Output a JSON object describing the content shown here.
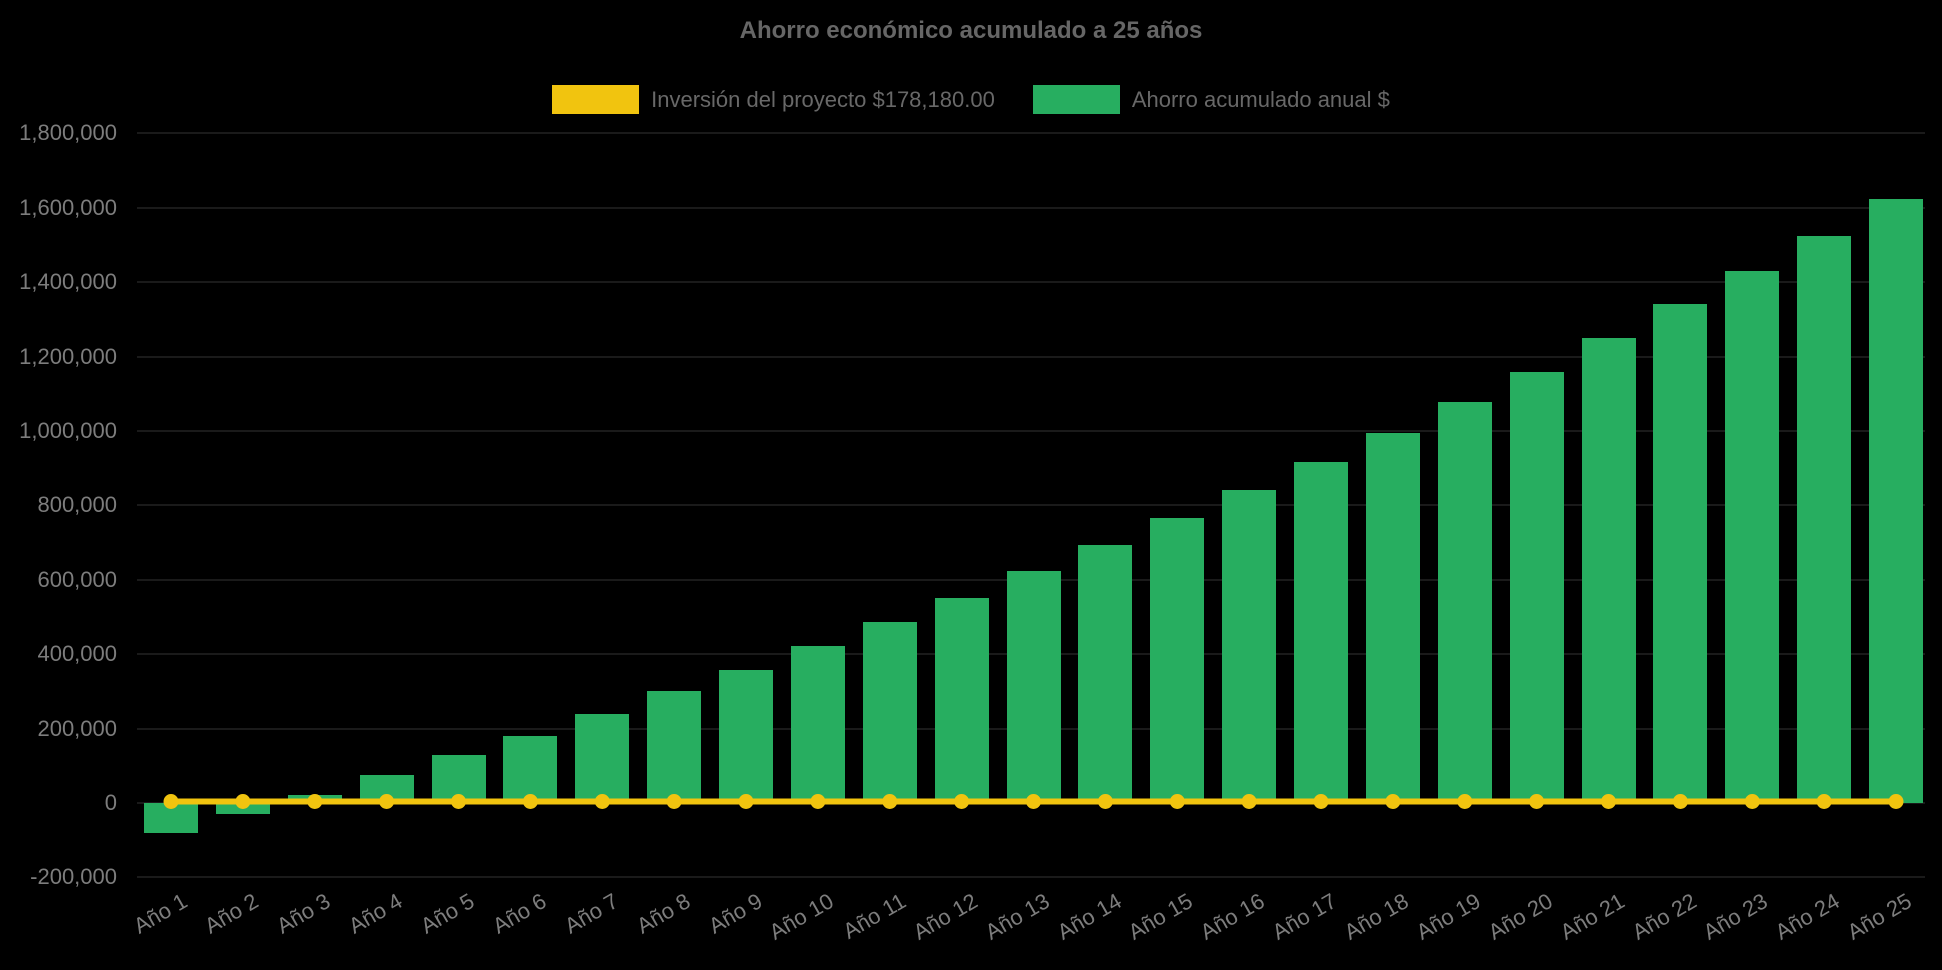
{
  "title": "Ahorro económico acumulado a 25 años",
  "legend": {
    "items": [
      {
        "label": "Inversión del proyecto $178,180.00",
        "color": "#F1C40F"
      },
      {
        "label": "Ahorro acumulado anual $",
        "color": "#27AE60"
      }
    ]
  },
  "colors": {
    "background": "#000000",
    "bar_green": "#27AE60",
    "line_yellow": "#F1C40F",
    "title_text": "#666666",
    "tick_text": "#7D7D7D",
    "gridline": "#1A1A1A"
  },
  "chart_data": {
    "type": "bar",
    "title": "Ahorro económico acumulado a 25 años",
    "categories": [
      "Año 1",
      "Año 2",
      "Año 3",
      "Año 4",
      "Año 5",
      "Año 6",
      "Año 7",
      "Año 8",
      "Año 9",
      "Año 10",
      "Año 11",
      "Año 12",
      "Año 13",
      "Año 14",
      "Año 15",
      "Año 16",
      "Año 17",
      "Año 18",
      "Año 19",
      "Año 20",
      "Año 21",
      "Año 22",
      "Año 23",
      "Año 24",
      "Año 25"
    ],
    "series": [
      {
        "name": "Inversión del proyecto $178,180.00",
        "type": "line",
        "color": "#F1C40F",
        "values": [
          0,
          0,
          0,
          0,
          0,
          0,
          0,
          0,
          0,
          0,
          0,
          0,
          0,
          0,
          0,
          0,
          0,
          0,
          0,
          0,
          0,
          0,
          0,
          0,
          0
        ]
      },
      {
        "name": "Ahorro acumulado anual $",
        "type": "bar",
        "color": "#27AE60",
        "values": [
          -80000,
          -30000,
          22000,
          75000,
          129000,
          181000,
          239000,
          301000,
          359000,
          423000,
          487000,
          552000,
          624000,
          695000,
          767000,
          841000,
          917000,
          996000,
          1078000,
          1159000,
          1249000,
          1341000,
          1431000,
          1523000,
          1624000
        ]
      }
    ],
    "xlabel": "",
    "ylabel": "",
    "ylim": [
      -200000,
      1800000
    ],
    "ytick_step": 200000,
    "grid": "faint horizontal gridlines, barely visible on black",
    "legend_position": "top"
  }
}
